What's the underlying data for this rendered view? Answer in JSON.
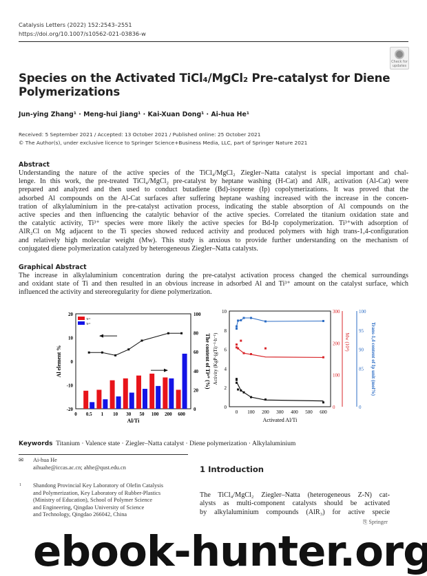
{
  "header": {
    "journal": "Catalysis Letters (2022) 152:2543–2551",
    "doi": "https://doi.org/10.1007/s10562-021-03836-w"
  },
  "badge": {
    "label": "Check for updates"
  },
  "title": [
    "Species on the Activated TiCl₄/MgCl₂ Pre-catalyst for Diene",
    "Polymerizations"
  ],
  "authors": "Jun-ying Zhang¹ · Meng-hui Jiang¹ · Kai-Xuan Dong¹ · Ai-hua He¹",
  "dates": "Received: 5 September 2021 / Accepted: 13 October 2021 / Published online: 25 October 2021",
  "copyright": "© The Author(s), under exclusive licence to Springer Science+Business Media, LLC, part of Springer Nature 2021",
  "abstract": {
    "heading": "Abstract",
    "lines": [
      "Understanding the nature of the active species of the TiCl₄/MgCl₂ Ziegler–Natta catalyst is special important and chal-",
      "lenge. In this work, the pre-treated TiCl₄/MgCl₂ pre-catalyst by heptane washing (H-Cat) and AlR₃ activation (Al-Cat) were",
      "prepared and analyzed and then used to conduct butadiene (Bd)-isoprene (Ip) copolymerizations. It was proved that the",
      "adsorbed Al compounds on the Al-Cat surfaces after suffering heptane washing increased with the increase in the concen-",
      "tration of alkylaluminium in the pre-catalyst activation process, indicating the stable absorption of Al compounds on the",
      "active species and then influencing the catalytic behavior of the active species. Correlated the titanium oxidation state and",
      "the catalytic activity, Ti³⁺ species were more likely the active species for Bd-Ip copolymerization. Ti³⁺with adsorption of",
      "AlR₂Cl on Mg adjacent to the Ti species showed reduced activity and produced polymers with high trans-1,4-configuration",
      "and relatively high molecular weight (Mw). This study is anxious to provide further understanding on the mechanism of",
      "conjugated diene polymerization catalyzed by heterogeneous Ziegler–Natta catalysts."
    ]
  },
  "graphical": {
    "heading": "Graphical Abstract",
    "lines": [
      "The increase in alkylaluminium concentration during the pre-catalyst activation process changed the chemical surroundings",
      "and oxidant state of Ti and then resulted in an obvious increase in adsorbed Al and Ti³⁺ amount on the catalyst surface, which",
      "influenced the activity and stereoregularity for diene polymerization."
    ]
  },
  "chart_data": [
    {
      "type": "bar",
      "title": "",
      "xlabel": "Al/Ti",
      "ylabel": "Al element %",
      "y2label": "The content of Tiⁿ⁺ (%)",
      "categories": [
        "0",
        "0.5",
        "1",
        "10",
        "30",
        "50",
        "100",
        "200",
        "600"
      ],
      "ylim": [
        -20,
        20
      ],
      "y2lim": [
        0,
        100
      ],
      "yticks": [
        "-20",
        "-10",
        "0",
        "10",
        "20"
      ],
      "y2ticks": [
        "0",
        "20",
        "40",
        "60",
        "80",
        "100"
      ],
      "legend": [
        "Ti³⁺",
        "Ti²⁺"
      ],
      "legend_position": "top-left",
      "series": [
        {
          "name": "Ti³⁺",
          "axis": "right",
          "color": "#e8141a",
          "values": [
            null,
            19,
            20,
            30,
            32,
            35,
            37,
            33,
            20
          ]
        },
        {
          "name": "Ti²⁺",
          "axis": "right",
          "color": "#1414e6",
          "values": [
            null,
            7,
            10,
            13,
            17,
            21,
            24,
            32,
            58
          ]
        },
        {
          "name": "Al element",
          "axis": "left",
          "type": "line",
          "color": "#111",
          "values": [
            null,
            3.7,
            3.7,
            2.5,
            5,
            8.7,
            null,
            11.8,
            11.8
          ]
        }
      ]
    },
    {
      "type": "scatter",
      "xlabel": "Activated Al/Ti",
      "ylabel": "Activity (KgP·(gTi)⁻¹·h⁻¹)",
      "y2label": "Mw (10⁴)",
      "y3label": "Trans-1,4 content of Ip unit (mol%)",
      "xlim": [
        -50,
        650
      ],
      "ylim": [
        0,
        10
      ],
      "y2lim": [
        0,
        300
      ],
      "y3ticks": [
        "0",
        "85",
        "90",
        "95",
        "100"
      ],
      "xticks": [
        "0",
        "100",
        "200",
        "300",
        "400",
        "500",
        "600"
      ],
      "yticks": [
        "0",
        "2",
        "4",
        "6",
        "8",
        "10"
      ],
      "y2ticks": [
        "0",
        "100",
        "200",
        "300"
      ],
      "series": [
        {
          "name": "Activity",
          "color": "#111",
          "x": [
            0,
            0,
            0,
            10,
            30,
            50,
            100,
            200,
            600
          ],
          "y": [
            2.9,
            2.5,
            2.8,
            1.8,
            1.7,
            1.5,
            1.0,
            0.75,
            0.45
          ]
        },
        {
          "name": "Mw",
          "color": "#d9262a",
          "x": [
            0,
            0,
            10,
            30,
            50,
            100,
            200,
            600
          ],
          "y": [
            195,
            186,
            183,
            207,
            168,
            165,
            183,
            155
          ]
        },
        {
          "name": "Trans-1,4 content",
          "color": "#2b6cc4",
          "x": [
            0,
            0,
            10,
            30,
            50,
            100,
            200,
            600
          ],
          "y": [
            95.4,
            96,
            97.5,
            97.6,
            98.2,
            98.2,
            97.3,
            97.4
          ]
        }
      ]
    }
  ],
  "keywords": {
    "label": "Keywords",
    "text": "Titanium · Valence state · Ziegler–Natta catalyst · Diene polymerization · Alkylaluminium"
  },
  "contact": {
    "name": "Ai-hua He",
    "emails": "aihuahe@iccas.ac.cn; ahhe@qust.edu.cn"
  },
  "affiliation": {
    "number": "1",
    "lines": [
      "Shandong Provincial Key Laboratory of Olefin Catalysis",
      "and Polymerization, Key Laboratory of Rubber-Plastics",
      "(Ministry of Education), School of Polymer Science",
      "and Engineering, Qingdao University of Science",
      "and Technology, Qingdao 266042, China"
    ]
  },
  "introduction": {
    "heading": "1  Introduction",
    "lines": [
      "The TiCl₄/MgCl₂ Ziegler–Natta (heterogeneous Z-N) cat-",
      "alysts as multi-component catalysts should be activated",
      "by alkylaluminium compounds (AlR₃) for active specie"
    ]
  },
  "publisher": "Springer",
  "watermark": "ebook-hunter.org"
}
